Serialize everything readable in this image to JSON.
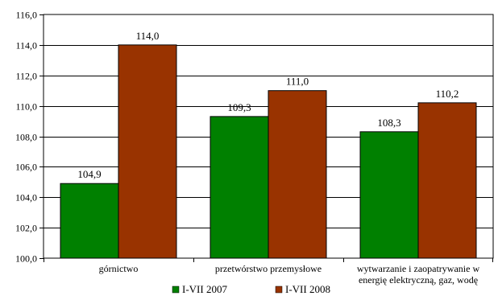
{
  "chart_data": {
    "type": "bar",
    "categories": [
      [
        "górnictwo"
      ],
      [
        "przetwórstwo przemysłowe"
      ],
      [
        "wytwarzanie i zaopatrywanie w",
        "energię elektryczną, gaz, wodę"
      ]
    ],
    "series": [
      {
        "name": "I-VII 2007",
        "color": "#008000",
        "values": [
          104.9,
          109.3,
          108.3
        ],
        "labels": [
          "104,9",
          "109,3",
          "108,3"
        ]
      },
      {
        "name": "I-VII 2008",
        "color": "#993300",
        "values": [
          114.0,
          111.0,
          110.2
        ],
        "labels": [
          "114,0",
          "111,0",
          "110,2"
        ]
      }
    ],
    "ylim": [
      100,
      116
    ],
    "yticks": [
      100,
      102,
      104,
      106,
      108,
      110,
      112,
      114,
      116
    ],
    "ytick_labels": [
      "100,0",
      "102,0",
      "104,0",
      "106,0",
      "108,0",
      "110,0",
      "112,0",
      "114,0",
      "116,0"
    ],
    "grid": true,
    "legend_position": "bottom"
  }
}
